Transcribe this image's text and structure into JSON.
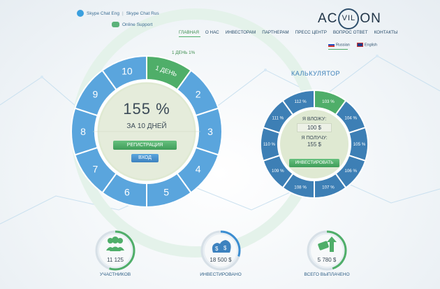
{
  "header": {
    "skype_eng": "Skype Chat Eng",
    "skype_sep": "|",
    "skype_rus": "Skype Chat Rus",
    "online_support": "Online Support",
    "logo_left": "AC",
    "logo_ring": "VIL",
    "logo_right": "ON"
  },
  "nav": {
    "items": [
      "ГЛАВНАЯ",
      "О НАС",
      "ИНВЕСТОРАМ",
      "ПАРТНЕРАМ",
      "ПРЕСС ЦЕНТР",
      "ВОПРОС ОТВЕТ",
      "КОНТАКТЫ"
    ]
  },
  "langs": {
    "russian": "Russian",
    "english": "English"
  },
  "dial": {
    "tag": "1 ДЕНЬ 1%",
    "segments": [
      "1 ДЕНЬ",
      "2",
      "3",
      "4",
      "5",
      "6",
      "7",
      "8",
      "9",
      "10"
    ],
    "percent": "155 %",
    "period": "ЗА 10 ДНЕЙ",
    "register_label": "РЕГИСТРАЦИЯ",
    "login_label": "ВХОД"
  },
  "calc": {
    "title": "КАЛЬКУЛЯТОР",
    "segments": [
      "103 %",
      "104 %",
      "105 %",
      "106 %",
      "107 %",
      "108 %",
      "109 %",
      "110 %",
      "111 %",
      "112 %"
    ],
    "invest_label": "Я ВЛОЖУ:",
    "invest_value": "100 $",
    "receive_label": "Я ПОЛУЧУ:",
    "receive_value": "155 $",
    "invest_button": "ИНВЕСТИРОВАТЬ"
  },
  "stats": [
    {
      "value": "11 125",
      "label": "УЧАСТНИКОВ",
      "icon": "users-icon",
      "progress": 0.55,
      "color": "#4fae69"
    },
    {
      "value": "18 500 $",
      "label": "ИНВЕСТИРОВАНО",
      "icon": "money-bags-icon",
      "progress": 0.3,
      "color": "#3b8dd1"
    },
    {
      "value": "5 780 $",
      "label": "ВСЕГО ВЫПЛАЧЕНО",
      "icon": "payout-icon",
      "progress": 0.45,
      "color": "#4fae69"
    }
  ],
  "colors": {
    "blue": "#5aa5dd",
    "green": "#4fae69",
    "dark_blue": "#3d7fb5"
  }
}
